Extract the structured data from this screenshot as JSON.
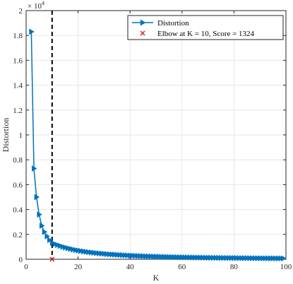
{
  "chart_data": {
    "type": "line",
    "xlabel": "K",
    "ylabel": "Distortion",
    "y_exponent_label": "× 10",
    "y_exponent_power": "4",
    "xlim": [
      0,
      100
    ],
    "ylim": [
      0,
      20000
    ],
    "x_ticks": [
      0,
      20,
      40,
      60,
      80,
      100
    ],
    "x_tick_labels": [
      "0",
      "20",
      "40",
      "60",
      "80",
      "100"
    ],
    "y_ticks": [
      0,
      2000,
      4000,
      6000,
      8000,
      10000,
      12000,
      14000,
      16000,
      18000,
      20000
    ],
    "y_tick_labels": [
      "0",
      "0.2",
      "0.4",
      "0.6",
      "0.8",
      "1",
      "1.2",
      "1.4",
      "1.6",
      "1.8",
      "2"
    ],
    "grid": true,
    "legend_position": "top-right",
    "series": [
      {
        "name": "Distortion",
        "color": "#0072BD",
        "marker": "triangle-right",
        "x": [
          2,
          3,
          4,
          5,
          6,
          7,
          8,
          9,
          10,
          11,
          12,
          13,
          14,
          15,
          16,
          17,
          18,
          19,
          20,
          21,
          22,
          23,
          24,
          25,
          26,
          27,
          28,
          29,
          30,
          31,
          32,
          33,
          34,
          35,
          36,
          37,
          38,
          39,
          40,
          41,
          42,
          43,
          44,
          45,
          46,
          47,
          48,
          49,
          50,
          51,
          52,
          53,
          54,
          55,
          56,
          57,
          58,
          59,
          60,
          61,
          62,
          63,
          64,
          65,
          66,
          67,
          68,
          69,
          70,
          71,
          72,
          73,
          74,
          75,
          76,
          77,
          78,
          79,
          80,
          81,
          82,
          83,
          84,
          85,
          86,
          87,
          88,
          89,
          90,
          91,
          92,
          93,
          94,
          95,
          96,
          97,
          98,
          99
        ],
        "y": [
          18300,
          7300,
          5000,
          3600,
          2700,
          2200,
          1850,
          1550,
          1324,
          1230,
          1150,
          1080,
          1010,
          950,
          890,
          840,
          790,
          745,
          705,
          670,
          635,
          605,
          575,
          550,
          525,
          500,
          480,
          460,
          440,
          420,
          405,
          390,
          375,
          360,
          347,
          335,
          323,
          312,
          301,
          290,
          280,
          271,
          262,
          253,
          245,
          237,
          230,
          223,
          216,
          209,
          203,
          197,
          191,
          186,
          181,
          176,
          171,
          166,
          162,
          158,
          154,
          150,
          146,
          142,
          139,
          135,
          132,
          129,
          126,
          123,
          120,
          117,
          115,
          112,
          110,
          107,
          105,
          103,
          101,
          99,
          97,
          95,
          93,
          91,
          89,
          88,
          86,
          84,
          83,
          81,
          80,
          78,
          77,
          76,
          74,
          73,
          72,
          71
        ]
      },
      {
        "name": "Elbow at K = 10, Score = 1324",
        "color": "#D62728",
        "marker": "x",
        "x": [
          10
        ],
        "y": [
          0
        ]
      }
    ],
    "elbow_line": {
      "x": 10,
      "color": "#000000",
      "style": "dashed"
    }
  }
}
